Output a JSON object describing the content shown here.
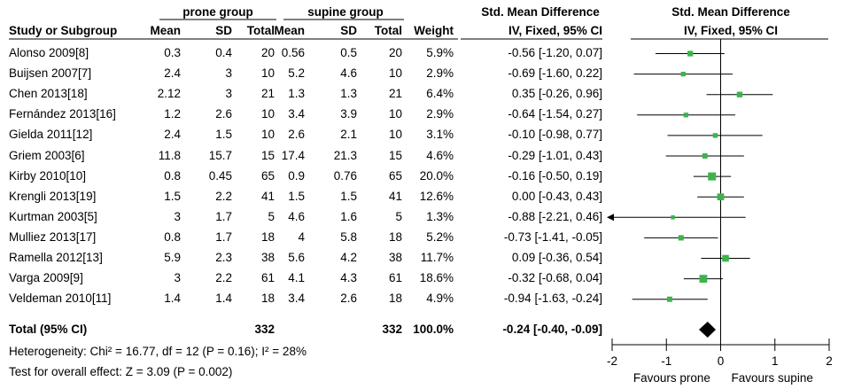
{
  "headers": {
    "group1": "prone group",
    "group2": "supine group",
    "effect_left": "Std. Mean Difference",
    "effect_right": "Std. Mean Difference",
    "study": "Study or Subgroup",
    "mean": "Mean",
    "sd": "SD",
    "total": "Total",
    "weight": "Weight",
    "method_left": "IV, Fixed, 95% CI",
    "method_right": "IV, Fixed, 95% CI"
  },
  "studies": [
    {
      "name": "Alonso 2009[8]",
      "m1": "0.3",
      "sd1": "0.4",
      "n1": "20",
      "m2": "0.56",
      "sd2": "0.5",
      "n2": "20",
      "weight": "5.9%",
      "ci": "-0.56 [-1.20, 0.07]"
    },
    {
      "name": "Buijsen 2007[7]",
      "m1": "2.4",
      "sd1": "3",
      "n1": "10",
      "m2": "5.2",
      "sd2": "4.6",
      "n2": "10",
      "weight": "2.9%",
      "ci": "-0.69 [-1.60, 0.22]"
    },
    {
      "name": "Chen 2013[18]",
      "m1": "2.12",
      "sd1": "3",
      "n1": "21",
      "m2": "1.3",
      "sd2": "1.3",
      "n2": "21",
      "weight": "6.4%",
      "ci": "0.35 [-0.26, 0.96]"
    },
    {
      "name": "Fernández 2013[16]",
      "m1": "1.2",
      "sd1": "2.6",
      "n1": "10",
      "m2": "3.4",
      "sd2": "3.9",
      "n2": "10",
      "weight": "2.9%",
      "ci": "-0.64 [-1.54, 0.27]"
    },
    {
      "name": "Gielda 2011[12]",
      "m1": "2.4",
      "sd1": "1.5",
      "n1": "10",
      "m2": "2.6",
      "sd2": "2.1",
      "n2": "10",
      "weight": "3.1%",
      "ci": "-0.10 [-0.98, 0.77]"
    },
    {
      "name": "Griem 2003[6]",
      "m1": "11.8",
      "sd1": "15.7",
      "n1": "15",
      "m2": "17.4",
      "sd2": "21.3",
      "n2": "15",
      "weight": "4.6%",
      "ci": "-0.29 [-1.01, 0.43]"
    },
    {
      "name": "Kirby 2010[10]",
      "m1": "0.8",
      "sd1": "0.45",
      "n1": "65",
      "m2": "0.9",
      "sd2": "0.76",
      "n2": "65",
      "weight": "20.0%",
      "ci": "-0.16 [-0.50, 0.19]"
    },
    {
      "name": "Krengli 2013[19]",
      "m1": "1.5",
      "sd1": "2.2",
      "n1": "41",
      "m2": "1.5",
      "sd2": "1.5",
      "n2": "41",
      "weight": "12.6%",
      "ci": "0.00 [-0.43, 0.43]"
    },
    {
      "name": "Kurtman 2003[5]",
      "m1": "3",
      "sd1": "1.7",
      "n1": "5",
      "m2": "4.6",
      "sd2": "1.6",
      "n2": "5",
      "weight": "1.3%",
      "ci": "-0.88 [-2.21, 0.46]"
    },
    {
      "name": "Mulliez 2013[17]",
      "m1": "0.8",
      "sd1": "1.7",
      "n1": "18",
      "m2": "4",
      "sd2": "5.8",
      "n2": "18",
      "weight": "5.2%",
      "ci": "-0.73 [-1.41, -0.05]"
    },
    {
      "name": "Ramella 2012[13]",
      "m1": "5.9",
      "sd1": "2.3",
      "n1": "38",
      "m2": "5.6",
      "sd2": "4.2",
      "n2": "38",
      "weight": "11.7%",
      "ci": "0.09 [-0.36, 0.54]"
    },
    {
      "name": "Varga 2009[9]",
      "m1": "3",
      "sd1": "2.2",
      "n1": "61",
      "m2": "4.1",
      "sd2": "4.3",
      "n2": "61",
      "weight": "18.6%",
      "ci": "-0.32 [-0.68, 0.04]"
    },
    {
      "name": "Veldeman 2010[11]",
      "m1": "1.4",
      "sd1": "1.4",
      "n1": "18",
      "m2": "3.4",
      "sd2": "2.6",
      "n2": "18",
      "weight": "4.9%",
      "ci": "-0.94 [-1.63, -0.24]"
    }
  ],
  "total": {
    "label": "Total (95% CI)",
    "n1": "332",
    "n2": "332",
    "weight": "100.0%",
    "ci": "-0.24 [-0.40, -0.09]"
  },
  "heterogeneity": "Heterogeneity: Chi² = 16.77, df = 12 (P = 0.16); I² = 28%",
  "overall_effect": "Test for overall effect: Z = 3.09 (P = 0.002)",
  "colors": {
    "marker": "#3cb44b",
    "line": "#000000",
    "text": "#000000"
  },
  "chart_data": {
    "type": "forest",
    "measure": "Std. Mean Difference, IV, Fixed, 95% CI",
    "xlim": [
      -2,
      2
    ],
    "xticks": [
      "-2",
      "-1",
      "0",
      "1",
      "2"
    ],
    "xticks_values": [
      -2,
      -1,
      0,
      1,
      2
    ],
    "null_line": 0,
    "favours_left": "Favours prone",
    "favours_right": "Favours supine",
    "points": [
      {
        "study": "Alonso 2009[8]",
        "est": -0.56,
        "lo": -1.2,
        "hi": 0.07,
        "weight": 5.9
      },
      {
        "study": "Buijsen 2007[7]",
        "est": -0.69,
        "lo": -1.6,
        "hi": 0.22,
        "weight": 2.9
      },
      {
        "study": "Chen 2013[18]",
        "est": 0.35,
        "lo": -0.26,
        "hi": 0.96,
        "weight": 6.4
      },
      {
        "study": "Fernández 2013[16]",
        "est": -0.64,
        "lo": -1.54,
        "hi": 0.27,
        "weight": 2.9
      },
      {
        "study": "Gielda 2011[12]",
        "est": -0.1,
        "lo": -0.98,
        "hi": 0.77,
        "weight": 3.1
      },
      {
        "study": "Griem 2003[6]",
        "est": -0.29,
        "lo": -1.01,
        "hi": 0.43,
        "weight": 4.6
      },
      {
        "study": "Kirby 2010[10]",
        "est": -0.16,
        "lo": -0.5,
        "hi": 0.19,
        "weight": 20.0
      },
      {
        "study": "Krengli 2013[19]",
        "est": 0.0,
        "lo": -0.43,
        "hi": 0.43,
        "weight": 12.6
      },
      {
        "study": "Kurtman 2003[5]",
        "est": -0.88,
        "lo": -2.21,
        "hi": 0.46,
        "weight": 1.3
      },
      {
        "study": "Mulliez 2013[17]",
        "est": -0.73,
        "lo": -1.41,
        "hi": -0.05,
        "weight": 5.2
      },
      {
        "study": "Ramella 2012[13]",
        "est": 0.09,
        "lo": -0.36,
        "hi": 0.54,
        "weight": 11.7
      },
      {
        "study": "Varga 2009[9]",
        "est": -0.32,
        "lo": -0.68,
        "hi": 0.04,
        "weight": 18.6
      },
      {
        "study": "Veldeman 2010[11]",
        "est": -0.94,
        "lo": -1.63,
        "hi": -0.24,
        "weight": 4.9
      }
    ],
    "summary": {
      "est": -0.24,
      "lo": -0.4,
      "hi": -0.09
    }
  }
}
